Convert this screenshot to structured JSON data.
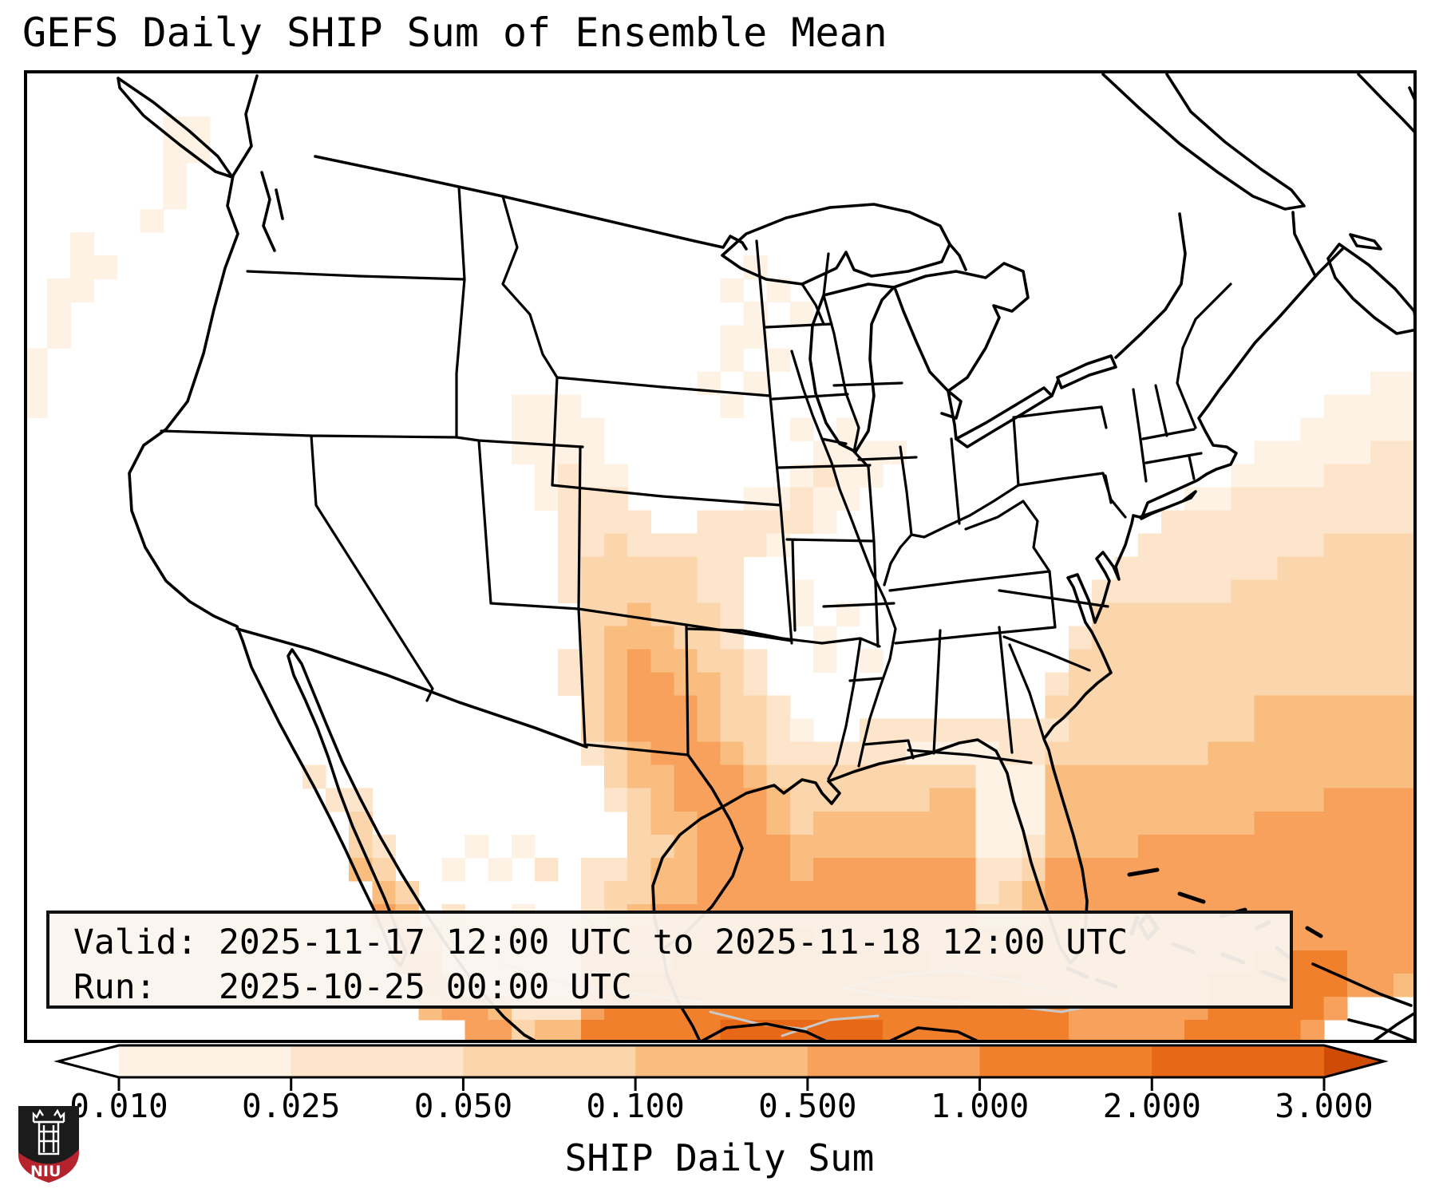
{
  "title": "GEFS Daily SHIP Sum of Ensemble Mean",
  "info_box": {
    "valid_label": "Valid:",
    "valid_value": "2025-11-17 12:00 UTC to 2025-11-18 12:00 UTC",
    "run_label": "Run:",
    "run_value": "2025-10-25 00:00 UTC"
  },
  "logo": {
    "text": "NIU"
  },
  "chart_data": {
    "type": "heatmap",
    "title": "GEFS Daily SHIP Sum of Ensemble Mean",
    "subtitle_valid": "Valid: 2025-11-17 12:00 UTC to 2025-11-18 12:00 UTC",
    "subtitle_run": "Run: 2025-10-25 00:00 UTC",
    "region": "CONUS / northern Mexico / western Atlantic, pixelated ensemble-mean SHIP daily sum field over a state-boundary basemap",
    "legend_position": "bottom horizontal colorbar with extend arrows on both ends",
    "colorbar": {
      "label": "SHIP Daily Sum",
      "tick_labels": [
        "0.010",
        "0.025",
        "0.050",
        "0.100",
        "0.500",
        "1.000",
        "2.000",
        "3.000"
      ],
      "boundaries": [
        0.01,
        0.025,
        0.05,
        0.1,
        0.5,
        1.0,
        2.0,
        3.0
      ],
      "under_color": "#ffffff",
      "segment_colors": [
        "#fdf2e4",
        "#fce5cb",
        "#fbd5ac",
        "#fabd80",
        "#f8a15c",
        "#f1802c",
        "#e76817"
      ],
      "over_color": "#cf4c06",
      "extend": "both"
    },
    "grid": {
      "cols": 60,
      "rows": 42,
      "palette": [
        "#ffffff",
        "#fdf2e4",
        "#fce5cb",
        "#fbd5ac",
        "#fabd80",
        "#f8a15c",
        "#f1802c",
        "#e76817"
      ],
      "note": "digit = palette index; 0 means no shading (white); field maxima in Gulf of Mexico, Texas, NW Caribbean and subtropical Atlantic",
      "cells": [
        "000000000000000000000000000000000000000000000000000000000000",
        "000000000000000000000000000000000000000000000000000000000000",
        "000000110000000000000000000000000000000000000000000000000000",
        "000000110000000000000000000000000000000000000000000000000000",
        "000000100000000000000000000000000000000000000000000000000000",
        "000000100000000000000000000000000000000000000000000000000000",
        "000001000000000000000000000000000000000000000000000000000000",
        "001000000000000000000000000000000000000000000000000000000000",
        "001100000000000000000000000000010000000000000000000000000000",
        "011000000000000000000000000000101000000000000000000000000000",
        "010000000000000000000000000000010100000000000000000000000000",
        "010000000000000000000000000000110000000000000000000000000000",
        "100000000000000000000000000000101000000000000000000000000000",
        "100000000000000000000000000001010000000000000000000000000011",
        "100000000000000000000111000000100000000000000000000000001111",
        "000000000000000000000111100000000101000000000000000000011111",
        "000000000000000000000111100000000011110000000000000001111122",
        "000000000000000000000012110000000121100000000000000011112222",
        "000000000000000000000012220000011211000000000000001122222222",
        "000000000000000000000002222002222210000000000000022222222222",
        "000000000000000000000002232222221000000000000000222222223333",
        "000000000000000000000002333332200000000000000002222222333333",
        "000000000000000000000002333332200100000000000022222233333333",
        "000000000000000000000000334333200101000000000033333333333333",
        "000000000000000000000000344433200010000000000233333333333333",
        "000000000000000000000002345443320010100000000333333333333333",
        "000000000000000000000002345544320000000000002333333333333333",
        "000000000000000000000000345554332000000000003333333334444444",
        "000000000000000000000000345554332100222222222333333334444444",
        "000000000000000000000000234555432222221111223333333444444444",
        "000000000000200000000000034455543333333331114444444444444444",
        "000000000000022000000000023455554333333441114444444444445555",
        "000000000000003000000000003445554344444441114444444445555555",
        "000000000000003200010100003345555444444441124444555555555555",
        "000000000000004300101020223445555455555552235555555555555555",
        "000000000000000430000000233445555555555552345555555555555555",
        "000000000000000540200100234555555555555553345555555555555555",
        "000000000000000054000000455555566655555555555555555555555555",
        "000000000000000055000000555566666666666555555555555556666555",
        "000000000000000005400000566666666666666666655555555666666554",
        "000000000000000004554222566666666666666666666555555666665000",
        "000000000000000000055344666666777777766666666555556666650000"
      ]
    }
  }
}
